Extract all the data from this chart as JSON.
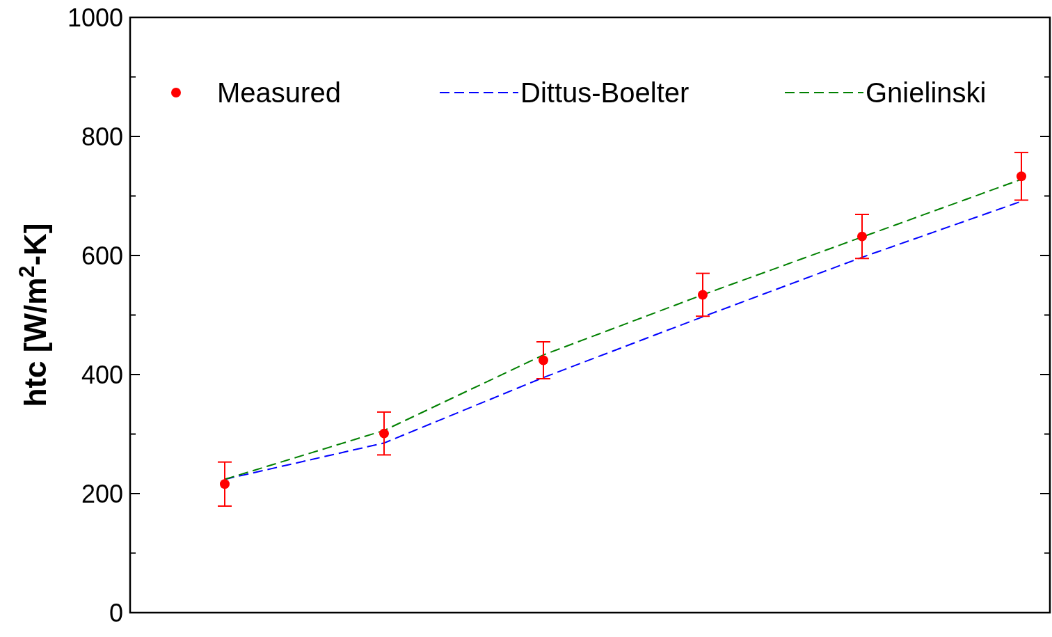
{
  "chart_data": {
    "type": "scatter",
    "ylabel": "htc [W/m$^{2}$-K]",
    "categories": [
      null,
      null,
      null,
      null,
      null,
      null
    ],
    "ylim": [
      0,
      1000
    ],
    "yticks": [
      0,
      {
        "value": 100,
        "label": null
      },
      200,
      {
        "value": 300,
        "label": null
      },
      400,
      {
        "value": 500,
        "label": null
      },
      600,
      {
        "value": 700,
        "label": null
      },
      800,
      {
        "value": 900,
        "label": null
      },
      1000
    ],
    "tick_labels": "y",
    "grid": false,
    "legend": "top",
    "series": [
      {
        "name": "Measured",
        "color": "#ff0000",
        "marker": "circle",
        "values": [
          216,
          301,
          424,
          534,
          632,
          733
        ],
        "errors": [
          37,
          36,
          31,
          36,
          37,
          40
        ]
      },
      {
        "name": "Dittus-Boelter",
        "type": "line",
        "color": "#0000ff",
        "line_style": "dashed",
        "marker": "none",
        "values": [
          224,
          285,
          395,
          497,
          597,
          691
        ]
      },
      {
        "name": "Gnielinski",
        "type": "line",
        "color": "#008000",
        "line_style": "dashed",
        "marker": "none",
        "values": [
          224,
          306,
          433,
          534,
          631,
          728
        ]
      }
    ]
  }
}
